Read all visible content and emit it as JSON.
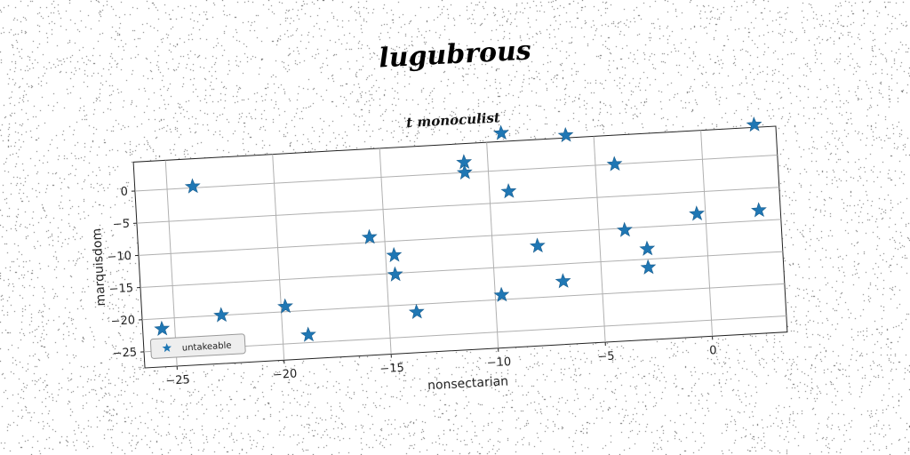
{
  "figure": {
    "title": "lugubrous"
  },
  "chart_data": {
    "type": "scatter",
    "title": "t monoculist",
    "xlabel": "nonsectarian",
    "ylabel": "marquisdom",
    "xlim": [
      -26.5,
      3.5
    ],
    "ylim": [
      -27.5,
      4.5
    ],
    "x_ticks": [
      -25,
      -20,
      -15,
      -10,
      -5,
      0
    ],
    "y_ticks": [
      0,
      -5,
      -10,
      -15,
      -20,
      -25
    ],
    "x_tick_labels": [
      "−25",
      "−20",
      "−15",
      "−10",
      "−5",
      "0"
    ],
    "y_tick_labels": [
      "0",
      "−5",
      "−10",
      "−15",
      "−20",
      "−25"
    ],
    "grid": true,
    "legend_position": "lower-left",
    "marker": "star",
    "color": "#1f77b4",
    "series": [
      {
        "name": "untakeable",
        "points": [
          [
            -23.8,
            0.2
          ],
          [
            -22.8,
            -20.0
          ],
          [
            -19.8,
            -19.2
          ],
          [
            -18.8,
            -23.8
          ],
          [
            -25.6,
            -21.6
          ],
          [
            -15.7,
            -9.2
          ],
          [
            -14.6,
            -12.2
          ],
          [
            -14.6,
            -15.2
          ],
          [
            -13.7,
            -21.2
          ],
          [
            -11.1,
            1.6
          ],
          [
            -11.1,
            0.0
          ],
          [
            -9.3,
            5.8
          ],
          [
            -9.1,
            -3.3
          ],
          [
            -9.7,
            -19.3
          ],
          [
            -7.9,
            -12.0
          ],
          [
            -6.8,
            -17.7
          ],
          [
            -6.3,
            4.9
          ],
          [
            -4.1,
            0.0
          ],
          [
            -3.8,
            -10.3
          ],
          [
            -2.8,
            -13.4
          ],
          [
            -2.8,
            -16.3
          ],
          [
            -0.4,
            -8.4
          ],
          [
            2.5,
            4.9
          ],
          [
            2.5,
            -8.4
          ]
        ]
      }
    ]
  }
}
